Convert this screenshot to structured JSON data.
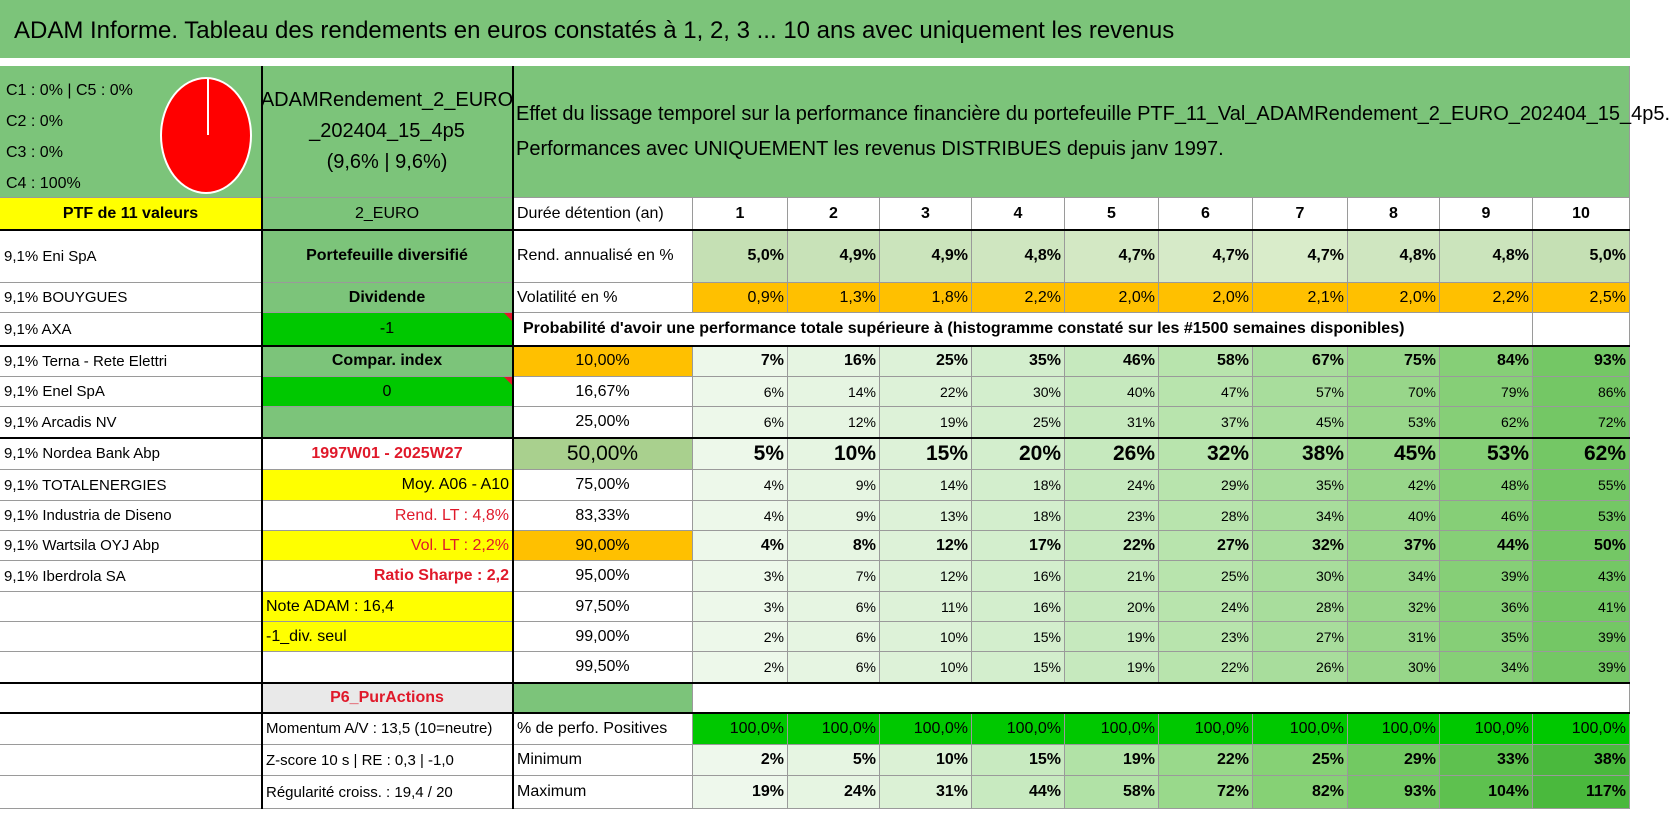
{
  "title": "ADAM Informe. Tableau des rendements en euros constatés à 1, 2, 3 ... 10 ans avec uniquement les revenus",
  "classes": [
    "C1 : 0% | C5 : 0%",
    "C2 : 0%",
    "C3 : 0%",
    "C4 : 100%"
  ],
  "pie_colors": {
    "main": "#ff0000",
    "slice_line": "#ffffff"
  },
  "fund": {
    "name_line1": "ADAMRendement_2_EURO",
    "name_line2": "_202404_15_4p5",
    "rates": "(9,6% | 9,6%)"
  },
  "description": {
    "line1": "Effet du lissage temporel sur la performance financière du portefeuille PTF_11_Val_ADAMRendement_2_EURO_202404_15_4p5.",
    "line2": "Performances avec UNIQUEMENT les revenus DISTRIBUES depuis janv 1997."
  },
  "ptf_header": "PTF de 11 valeurs",
  "currency": "2_EURO",
  "duration_label": "Durée détention (an)",
  "years": [
    "1",
    "2",
    "3",
    "4",
    "5",
    "6",
    "7",
    "8",
    "9",
    "10"
  ],
  "holdings": [
    "9,1% Eni SpA",
    "9,1% BOUYGUES",
    "9,1% AXA",
    "9,1% Terna - Rete Elettri",
    "9,1% Enel SpA",
    "9,1% Arcadis NV",
    "9,1% Nordea Bank Abp",
    "9,1% TOTALENERGIES",
    "9,1% Industria de Diseno",
    "9,1% Wartsila OYJ Abp",
    "9,1% Iberdrola SA"
  ],
  "info": {
    "diversified": "Portefeuille diversifié",
    "dividend": "Dividende",
    "minus_one": "-1",
    "compar": "Compar. index",
    "zero": "0",
    "period": "1997W01 - 2025W27",
    "moy": "Moy. A06 - A10",
    "rend_lt": "Rend. LT : 4,8%",
    "vol_lt": "Vol. LT : 2,2%",
    "sharpe": "Ratio Sharpe : 2,2",
    "note": "Note ADAM : 16,4",
    "div_seul": "-1_div. seul",
    "p6": "P6_PurActions",
    "momentum": "Momentum A/V : 13,5 (10=neutre)",
    "zscore": "Z-score 10 s | RE : 0,3 | -1,0",
    "regularite": "Régularité croiss. : 19,4 / 20"
  },
  "rend": {
    "label": "Rend. annualisé en %",
    "values": [
      "5,0%",
      "4,9%",
      "4,9%",
      "4,8%",
      "4,7%",
      "4,7%",
      "4,7%",
      "4,8%",
      "4,8%",
      "5,0%"
    ]
  },
  "vol": {
    "label": "Volatilité en %",
    "values": [
      "0,9%",
      "1,3%",
      "1,8%",
      "2,2%",
      "2,0%",
      "2,0%",
      "2,1%",
      "2,0%",
      "2,2%",
      "2,5%"
    ]
  },
  "prob_header": "Probabilité d'avoir une performance totale supérieure à (histogramme constaté sur les #1500 semaines disponibles)",
  "prob_rows": [
    {
      "label": "10,00%",
      "values": [
        "7%",
        "16%",
        "25%",
        "35%",
        "46%",
        "58%",
        "67%",
        "75%",
        "84%",
        "93%"
      ]
    },
    {
      "label": "16,67%",
      "values": [
        "6%",
        "14%",
        "22%",
        "30%",
        "40%",
        "47%",
        "57%",
        "70%",
        "79%",
        "86%"
      ]
    },
    {
      "label": "25,00%",
      "values": [
        "6%",
        "12%",
        "19%",
        "25%",
        "31%",
        "37%",
        "45%",
        "53%",
        "62%",
        "72%"
      ]
    },
    {
      "label": "50,00%",
      "values": [
        "5%",
        "10%",
        "15%",
        "20%",
        "26%",
        "32%",
        "38%",
        "45%",
        "53%",
        "62%"
      ]
    },
    {
      "label": "75,00%",
      "values": [
        "4%",
        "9%",
        "14%",
        "18%",
        "24%",
        "29%",
        "35%",
        "42%",
        "48%",
        "55%"
      ]
    },
    {
      "label": "83,33%",
      "values": [
        "4%",
        "9%",
        "13%",
        "18%",
        "23%",
        "28%",
        "34%",
        "40%",
        "46%",
        "53%"
      ]
    },
    {
      "label": "90,00%",
      "values": [
        "4%",
        "8%",
        "12%",
        "17%",
        "22%",
        "27%",
        "32%",
        "37%",
        "44%",
        "50%"
      ]
    },
    {
      "label": "95,00%",
      "values": [
        "3%",
        "7%",
        "12%",
        "16%",
        "21%",
        "25%",
        "30%",
        "34%",
        "39%",
        "43%"
      ]
    },
    {
      "label": "97,50%",
      "values": [
        "3%",
        "6%",
        "11%",
        "16%",
        "20%",
        "24%",
        "28%",
        "32%",
        "36%",
        "41%"
      ]
    },
    {
      "label": "99,00%",
      "values": [
        "2%",
        "6%",
        "10%",
        "15%",
        "19%",
        "23%",
        "27%",
        "31%",
        "35%",
        "39%"
      ]
    },
    {
      "label": "99,50%",
      "values": [
        "2%",
        "6%",
        "10%",
        "15%",
        "19%",
        "22%",
        "26%",
        "30%",
        "34%",
        "39%"
      ]
    }
  ],
  "positives": {
    "label": "% de perfo. Positives",
    "values": [
      "100,0%",
      "100,0%",
      "100,0%",
      "100,0%",
      "100,0%",
      "100,0%",
      "100,0%",
      "100,0%",
      "100,0%",
      "100,0%"
    ]
  },
  "minimum": {
    "label": "Minimum",
    "values": [
      "2%",
      "5%",
      "10%",
      "15%",
      "19%",
      "22%",
      "25%",
      "29%",
      "33%",
      "38%"
    ]
  },
  "maximum": {
    "label": "Maximum",
    "values": [
      "19%",
      "24%",
      "31%",
      "44%",
      "58%",
      "72%",
      "82%",
      "93%",
      "104%",
      "117%"
    ]
  }
}
